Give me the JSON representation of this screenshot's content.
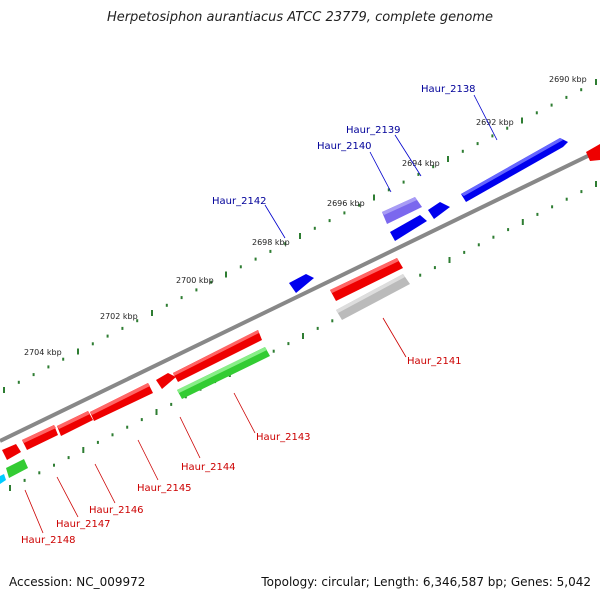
{
  "title": "Herpetosiphon aurantiacus ATCC 23779, complete genome",
  "footer": {
    "accession": "Accession: NC_009972",
    "summary": "Topology: circular; Length: 6,346,587 bp; Genes: 5,042"
  },
  "scale_labels": [
    "2690 kbp",
    "2692 kbp",
    "2694 kbp",
    "2696 kbp",
    "2698 kbp",
    "2700 kbp",
    "2702 kbp",
    "2704 kbp"
  ],
  "colors": {
    "backbone": "#808080",
    "forward_tick": "#2e7d32",
    "blue_gene": "#0000ee",
    "purple_gene": "#7b68ee",
    "red_gene": "#ee0000",
    "green_gene": "#33cc33",
    "grey_gene": "#bbbbbb",
    "cyan_gene": "#00ccff",
    "forward_label": "#000099",
    "reverse_label": "#cc0000"
  },
  "genes": {
    "forward_labels": [
      "Haur_2138",
      "Haur_2139",
      "Haur_2140",
      "Haur_2142"
    ],
    "reverse_labels": [
      "Haur_2141",
      "Haur_2143",
      "Haur_2144",
      "Haur_2145",
      "Haur_2146",
      "Haur_2147",
      "Haur_2148"
    ]
  }
}
